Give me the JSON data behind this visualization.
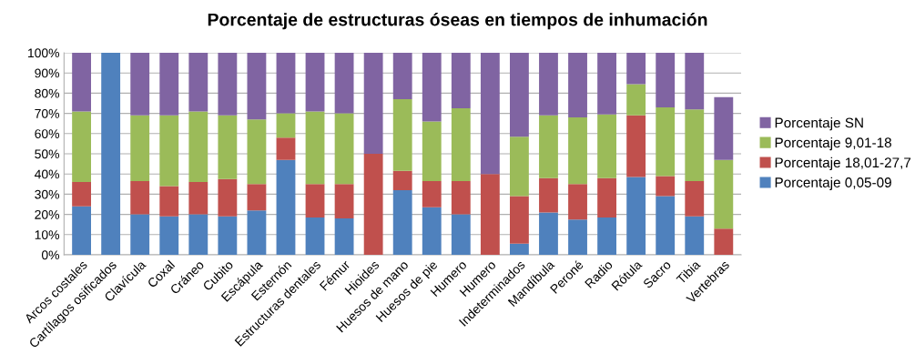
{
  "chart_data": {
    "type": "bar",
    "stacked": true,
    "title": "Porcentaje de estructuras óseas en tiempos de inhumación",
    "categories": [
      "Arcos costales",
      "Cartílagos osificados",
      "Clavícula",
      "Coxal",
      "Cráneo",
      "Cubito",
      "Escápula",
      "Esternón",
      "Estructuras dentales",
      "Fémur",
      "Hioides",
      "Huesos de mano",
      "Huesos de pie",
      "Humero",
      "Humero",
      "Indeterminados",
      "Mandíbula",
      "Peroné",
      "Radio",
      "Rótula",
      "Sacro",
      "Tibia",
      "Vertebras"
    ],
    "series": [
      {
        "name": "Porcentaje 0,05-09",
        "color": "#4f81bd",
        "values": [
          24,
          100,
          20,
          19,
          20,
          19,
          22,
          47,
          18.5,
          18,
          0,
          32,
          23.5,
          20,
          0,
          5.5,
          21,
          17.5,
          18.5,
          38.5,
          29,
          19,
          0
        ]
      },
      {
        "name": "Porcentaje 18,01-27,7",
        "color": "#c0504d",
        "values": [
          12,
          0,
          16.5,
          15,
          16,
          18.5,
          13,
          11,
          16.5,
          17,
          50,
          9.5,
          13,
          16.5,
          40,
          23.5,
          17,
          17.5,
          19.5,
          30.5,
          10,
          17.5,
          13
        ]
      },
      {
        "name": "Porcentaje 9,01-18",
        "color": "#9bbb59",
        "values": [
          35,
          0,
          32.5,
          35,
          35,
          31.5,
          32,
          12,
          36,
          35,
          0,
          35.5,
          29.5,
          36,
          0,
          29.5,
          31,
          33,
          31.5,
          15.5,
          34,
          35.5,
          34
        ]
      },
      {
        "name": "Porcentaje SN",
        "color": "#8064a2",
        "values": [
          29,
          0,
          31,
          31,
          29,
          31,
          33,
          30,
          29,
          30,
          50,
          23,
          34,
          27.5,
          60,
          41.5,
          31,
          32,
          30.5,
          15.5,
          27,
          28,
          31
        ]
      }
    ],
    "ylim": [
      0,
      100
    ],
    "yticks": [
      {
        "value": 0,
        "label": "0%"
      },
      {
        "value": 10,
        "label": "10%"
      },
      {
        "value": 20,
        "label": "20%"
      },
      {
        "value": 30,
        "label": "30%"
      },
      {
        "value": 40,
        "label": "40%"
      },
      {
        "value": 50,
        "label": "50%"
      },
      {
        "value": 60,
        "label": "60%"
      },
      {
        "value": 70,
        "label": "70%"
      },
      {
        "value": 80,
        "label": "80%"
      },
      {
        "value": 90,
        "label": "90%"
      },
      {
        "value": 100,
        "label": "100%"
      }
    ],
    "grid": "y",
    "legend": "right"
  }
}
